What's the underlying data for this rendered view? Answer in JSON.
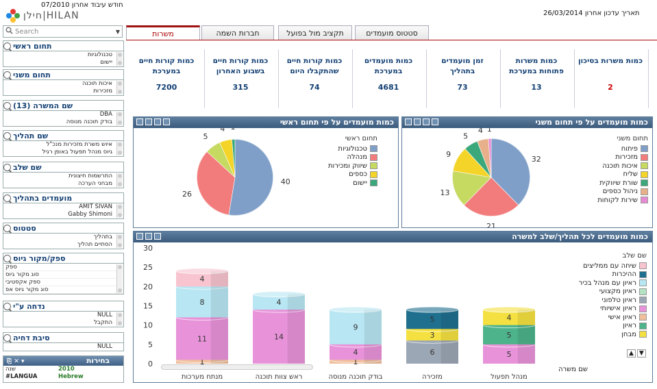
{
  "header": {
    "last_work_month": "חודש עיבוד אחרון 07/2010",
    "last_update": "תאריך עדכון אחרון 26/03/2014",
    "logo_text": "חילן|HILAN"
  },
  "search": {
    "placeholder": "Search"
  },
  "filters": [
    {
      "title": "תחום ראשי",
      "items": [
        "טכנולוגיות",
        "יישום"
      ]
    },
    {
      "title": "תחום משני",
      "items": [
        "איכות תוכנה",
        "מזכירות"
      ]
    },
    {
      "title": "שם המשרה (13)",
      "items": [
        "DBA",
        "בודק תוכנה מנוסה"
      ]
    },
    {
      "title": "שם תהליך",
      "items": [
        "איוש משרת מזכירות מנכ\"ל",
        "גיוס מנהל תפעול באופן רגיל"
      ]
    },
    {
      "title": "שם שלב",
      "items": [
        "התרשמות חיצונית",
        "מבחני הערכה"
      ]
    },
    {
      "title": "מועמדים בתהליך",
      "items": [
        "AMIT SIVAN",
        "Gabby Shimoni"
      ]
    },
    {
      "title": "סטטוס",
      "items": [
        "בתהליך",
        "הסתיים תהליך"
      ]
    },
    {
      "title": "ספק/מקור גיוס",
      "items": [
        "ספק",
        "סוג מקור גיוס",
        "ספק אקסטיבי",
        "סוג מקור גיוס אפ"
      ]
    },
    {
      "title": "נדחה ע\"י",
      "items": [
        "NULL",
        "התקבל"
      ]
    },
    {
      "title": "סיבת דחיה",
      "items": [
        "NULL"
      ]
    }
  ],
  "selections": {
    "title": "בחירות",
    "rows": [
      {
        "field": "שנה",
        "value": "2010"
      },
      {
        "field": "#LANGUA",
        "value": "Hebrew"
      }
    ]
  },
  "tabs": [
    {
      "label": "משרות",
      "active": true
    },
    {
      "label": "חברות השמה",
      "active": false
    },
    {
      "label": "תקציב מול בפועל",
      "active": false
    },
    {
      "label": "סטטוס מועמדים",
      "active": false
    }
  ],
  "kpis": [
    {
      "title": "כמות משרות בסיכון",
      "value": "2",
      "color": "#cc0000"
    },
    {
      "title": "כמות משרות פתוחות במערכת",
      "value": "13",
      "color": "#123f73"
    },
    {
      "title": "זמן מועמדים בתהליך",
      "value": "73",
      "color": "#123f73"
    },
    {
      "title": "כמות מועמדים במערכת",
      "value": "4681",
      "color": "#123f73"
    },
    {
      "title": "כמות קורות חיים שהתקבלו היום",
      "value": "74",
      "color": "#123f73"
    },
    {
      "title": "כמות קורות חיים בשבוע האחרון",
      "value": "315",
      "color": "#123f73"
    },
    {
      "title": "כמות קורות חיים במערכת",
      "value": "7200",
      "color": "#123f73"
    }
  ],
  "chart_data": [
    {
      "type": "pie",
      "title": "כמות מועמדים על פי תחום משני",
      "legend_title": "תחום משני",
      "categories": [
        "פיתוח",
        "מזכירות",
        "איכות תוכנה",
        "שליח",
        "שורת שיווקית",
        "ניהול כספים",
        "שירות לקוחות"
      ],
      "values": [
        32,
        21,
        13,
        9,
        5,
        4,
        1
      ],
      "colors": [
        "#7f9fc8",
        "#f27b7b",
        "#c6d961",
        "#f4d428",
        "#3aa87b",
        "#e8b08a",
        "#e78ad4"
      ]
    },
    {
      "type": "pie",
      "title": "כמות מועמדים על פי תחום ראשי",
      "legend_title": "תחום ראשי",
      "categories": [
        "טכנולוגיות",
        "מנהלה",
        "שיווק ומכירות",
        "כספים",
        "יישום"
      ],
      "values": [
        40,
        26,
        5,
        4,
        1
      ],
      "colors": [
        "#7f9fc8",
        "#f27b7b",
        "#c6d961",
        "#f4d428",
        "#3aa87b"
      ]
    },
    {
      "type": "bar",
      "title": "כמות מועמדים לכל תהליך/שלב למשרה",
      "xlabel": "שם משרה",
      "legend_title": "שם שלב",
      "categories": [
        "מנתח מערכות",
        "ראש צוות תוכנה",
        "בודק תוכנה מנוסה",
        "מזכירה",
        "מנהל תפעול"
      ],
      "ylim": [
        0,
        30
      ],
      "yticks": [
        0,
        5,
        10,
        15,
        20,
        25,
        30
      ],
      "series": [
        {
          "name": "שיחה עם ממליצים",
          "color": "#f7c4cf",
          "values": [
            4,
            0,
            0,
            0,
            0
          ]
        },
        {
          "name": "ההיכרות",
          "color": "#1f6f8f",
          "values": [
            0,
            0,
            0,
            5,
            0
          ]
        },
        {
          "name": "ראיון עם מנהל בכיר",
          "color": "#b8e6f2",
          "values": [
            8,
            4,
            9,
            0,
            0
          ]
        },
        {
          "name": "ראיון מקצועי",
          "color": "#b4e3c3",
          "values": [
            0,
            0,
            0,
            0,
            0
          ]
        },
        {
          "name": "ראיון טלפוני",
          "color": "#9ca7b5",
          "values": [
            0,
            0,
            0,
            6,
            0
          ]
        },
        {
          "name": "ראיון אישיותי",
          "color": "#e893d9",
          "values": [
            11,
            14,
            4,
            0,
            5
          ]
        },
        {
          "name": "ראיון אישי",
          "color": "#f0bf9c",
          "values": [
            1,
            0,
            1,
            0,
            0
          ]
        },
        {
          "name": "ראיון",
          "color": "#4db38a",
          "values": [
            0,
            0,
            0,
            0,
            5
          ]
        },
        {
          "name": "מבחן",
          "color": "#f4e040",
          "values": [
            0,
            0,
            0,
            3,
            4
          ]
        }
      ]
    }
  ]
}
